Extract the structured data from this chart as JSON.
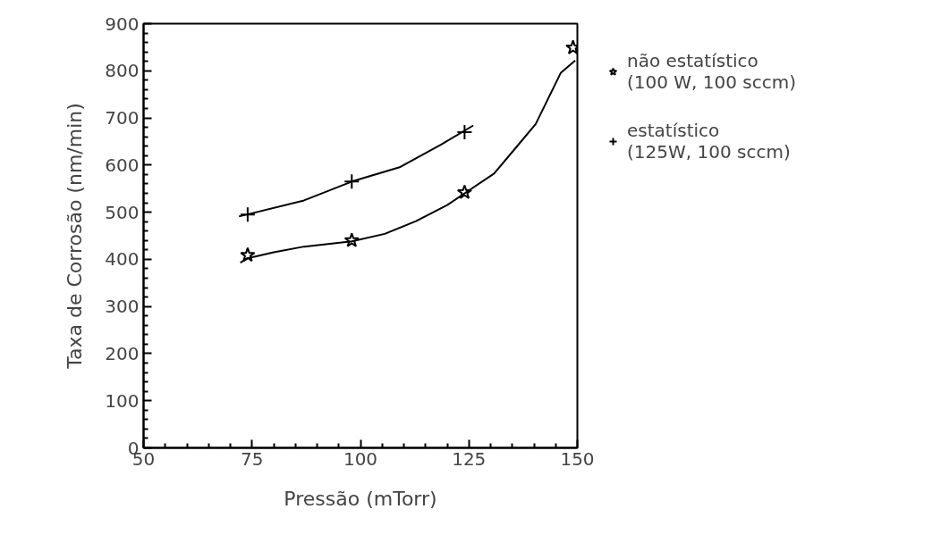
{
  "chart_data": {
    "type": "line",
    "xlabel": "Pressão (mTorr)",
    "ylabel": "Taxa de Corrosão (nm/min)",
    "xlim": [
      50,
      150
    ],
    "xticks": [
      50,
      75,
      100,
      125,
      150
    ],
    "ylim": [
      0,
      900
    ],
    "yticks": [
      0,
      100,
      200,
      300,
      400,
      500,
      600,
      700,
      800,
      900
    ],
    "grid": false,
    "legend": "right",
    "series": [
      {
        "type": "scatter",
        "name": "não estatístico\n(100 W, 100 sccm)",
        "marker": "star",
        "color": "#000000",
        "x": [
          74,
          98,
          124,
          149
        ],
        "values": [
          409,
          440,
          542,
          849
        ]
      },
      {
        "type": "scatter",
        "name": "estatístico\n(125W, 100 sccm)",
        "marker": "cross",
        "color": "#000000",
        "x": [
          74,
          98,
          124
        ],
        "values": [
          495,
          565,
          670
        ]
      },
      {
        "color": "#000000",
        "x": [
          72.3,
          74,
          80,
          87,
          98,
          105.6,
          112.8,
          120,
          124,
          130.8,
          135.2,
          140.4,
          146.2,
          149.5
        ],
        "values": [
          393,
          402,
          415,
          427,
          438,
          454,
          481,
          515,
          540,
          582,
          630,
          687,
          796,
          822
        ]
      },
      {
        "color": "#000000",
        "x": [
          72,
          87,
          98,
          109.2,
          118.5,
          126
        ],
        "values": [
          491,
          525,
          565,
          596,
          643,
          684
        ]
      }
    ]
  }
}
